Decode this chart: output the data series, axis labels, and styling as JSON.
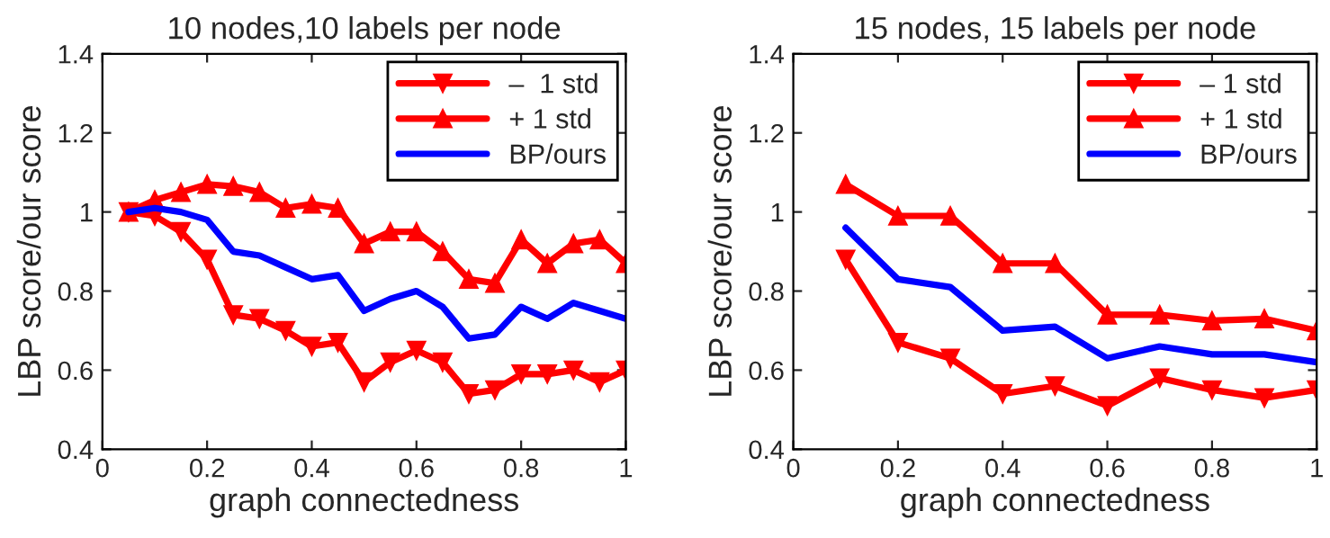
{
  "chart_data": [
    {
      "type": "line",
      "title": "10 nodes,10 labels per node",
      "xlabel": "graph connectedness",
      "ylabel": "LBP score/our score",
      "x": [
        0.05,
        0.1,
        0.15,
        0.2,
        0.25,
        0.3,
        0.35,
        0.4,
        0.45,
        0.5,
        0.55,
        0.6,
        0.65,
        0.7,
        0.75,
        0.8,
        0.85,
        0.9,
        0.95,
        1.0
      ],
      "series": [
        {
          "name": "–  1 std",
          "color": "#ff0000",
          "marker": "triangle_down",
          "values": [
            1.0,
            0.99,
            0.95,
            0.88,
            0.74,
            0.73,
            0.7,
            0.66,
            0.67,
            0.57,
            0.62,
            0.65,
            0.62,
            0.54,
            0.55,
            0.59,
            0.59,
            0.6,
            0.57,
            0.6
          ]
        },
        {
          "name": "+ 1 std",
          "color": "#ff0000",
          "marker": "triangle",
          "values": [
            1.0,
            1.03,
            1.05,
            1.07,
            1.065,
            1.05,
            1.01,
            1.02,
            1.01,
            0.92,
            0.95,
            0.95,
            0.9,
            0.83,
            0.82,
            0.93,
            0.87,
            0.92,
            0.93,
            0.87
          ]
        },
        {
          "name": "BP/ours",
          "color": "#0000ff",
          "marker": "none",
          "values": [
            1.0,
            1.01,
            1.0,
            0.98,
            0.9,
            0.89,
            0.86,
            0.83,
            0.84,
            0.75,
            0.78,
            0.8,
            0.76,
            0.68,
            0.69,
            0.76,
            0.73,
            0.77,
            0.75,
            0.73
          ]
        }
      ],
      "xlim": [
        0,
        1
      ],
      "ylim": [
        0.4,
        1.4
      ],
      "xticks": [
        0,
        0.2,
        0.4,
        0.6,
        0.8,
        1
      ],
      "yticks": [
        0.4,
        0.6,
        0.8,
        1,
        1.2,
        1.4
      ],
      "legend": "top right",
      "grid": false,
      "line_style": "solid"
    },
    {
      "type": "line",
      "title": "15 nodes, 15 labels per node",
      "xlabel": "graph connectedness",
      "ylabel": "LBP score/our score",
      "x": [
        0.1,
        0.2,
        0.3,
        0.4,
        0.5,
        0.6,
        0.7,
        0.8,
        0.9,
        1.0
      ],
      "series": [
        {
          "name": "– 1 std",
          "color": "#ff0000",
          "marker": "triangle_down",
          "values": [
            0.88,
            0.67,
            0.63,
            0.54,
            0.56,
            0.51,
            0.58,
            0.55,
            0.53,
            0.55
          ]
        },
        {
          "name": "+ 1 std",
          "color": "#ff0000",
          "marker": "triangle",
          "values": [
            1.07,
            0.99,
            0.99,
            0.87,
            0.87,
            0.74,
            0.74,
            0.725,
            0.73,
            0.7
          ]
        },
        {
          "name": "BP/ours",
          "color": "#0000ff",
          "marker": "none",
          "values": [
            0.96,
            0.83,
            0.81,
            0.7,
            0.71,
            0.63,
            0.66,
            0.64,
            0.64,
            0.62
          ]
        }
      ],
      "xlim": [
        0,
        1
      ],
      "ylim": [
        0.4,
        1.4
      ],
      "xticks": [
        0,
        0.2,
        0.4,
        0.6,
        0.8,
        1
      ],
      "yticks": [
        0.4,
        0.6,
        0.8,
        1,
        1.2,
        1.4
      ],
      "legend": "top right",
      "grid": false,
      "line_style": "solid"
    }
  ]
}
